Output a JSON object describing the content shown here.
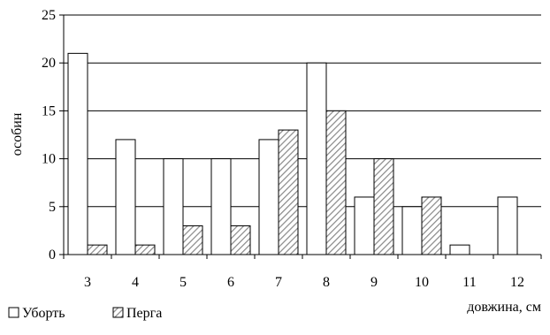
{
  "chart_data": {
    "type": "bar",
    "categories": [
      "3",
      "4",
      "5",
      "6",
      "7",
      "8",
      "9",
      "10",
      "11",
      "12"
    ],
    "series": [
      {
        "name": "Уборть",
        "values": [
          21,
          12,
          10,
          10,
          12,
          20,
          6,
          5,
          1,
          6
        ],
        "fill": "white"
      },
      {
        "name": "Перга",
        "values": [
          1,
          1,
          3,
          3,
          13,
          15,
          10,
          6,
          0,
          0
        ],
        "fill": "hatched"
      }
    ],
    "xlabel": "довжина, см",
    "ylabel": "особин",
    "ylim": [
      0,
      25
    ],
    "yticks": [
      "0",
      "5",
      "10",
      "15",
      "20",
      "25"
    ],
    "grid": true,
    "legend": "bottom-left"
  },
  "colors": {
    "stroke": "#000000",
    "hatch": "#888888",
    "background": "#ffffff"
  }
}
